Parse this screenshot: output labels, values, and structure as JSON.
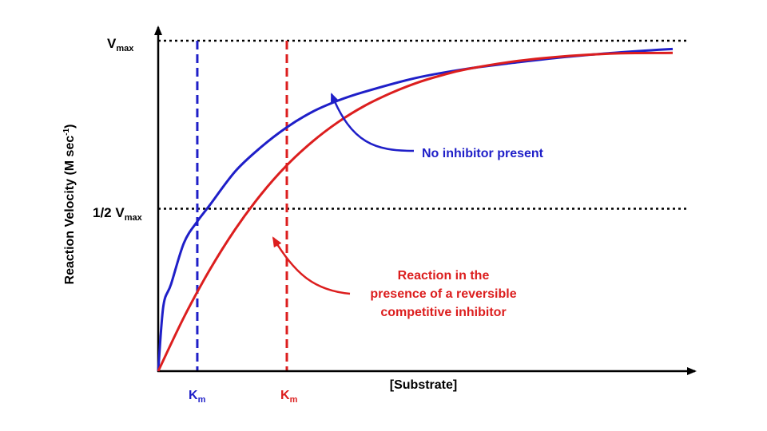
{
  "chart_data": {
    "type": "line",
    "title": "",
    "xlabel": "[Substrate]",
    "ylabel": "Reaction Velocity (M sec-1)",
    "ylabel_parts": {
      "main": "Reaction Velocity (M sec",
      "sup": "-1",
      "close": ")"
    },
    "xlim": [
      0,
      1
    ],
    "ylim": [
      0,
      1
    ],
    "grid": false,
    "legend": "annotations",
    "y_refs": [
      {
        "name": "vmax",
        "prefix": "V",
        "sub": "max",
        "value": 1.0
      },
      {
        "name": "half-vmax",
        "prefix": "1/2 V",
        "sub": "max",
        "value": 0.5
      }
    ],
    "series": [
      {
        "key": "no-inhibitor",
        "color": "#1f1fc8",
        "x": [
          0,
          0.01,
          0.025,
          0.05,
          0.075,
          0.1,
          0.15,
          0.2,
          0.25,
          0.3,
          0.35,
          0.4,
          0.5,
          0.6,
          0.7,
          0.8,
          0.9,
          1.0
        ],
        "y": [
          0,
          0.196,
          0.263,
          0.388,
          0.451,
          0.502,
          0.605,
          0.678,
          0.738,
          0.785,
          0.819,
          0.845,
          0.887,
          0.915,
          0.935,
          0.952,
          0.965,
          0.975
        ]
      },
      {
        "key": "competitive-inhibitor",
        "color": "#dc1e1e",
        "x": [
          0,
          0.05,
          0.1,
          0.15,
          0.2,
          0.25,
          0.3,
          0.35,
          0.4,
          0.45,
          0.5,
          0.55,
          0.6,
          0.7,
          0.8,
          0.9,
          1.0
        ],
        "y": [
          0,
          0.163,
          0.306,
          0.43,
          0.535,
          0.623,
          0.695,
          0.754,
          0.802,
          0.84,
          0.871,
          0.895,
          0.914,
          0.939,
          0.954,
          0.962,
          0.963
        ]
      }
    ],
    "km_markers": [
      {
        "key": "km-no-inhibitor",
        "x": 0.076,
        "label": "K",
        "sub": "m",
        "color": "#1f1fc8"
      },
      {
        "key": "km-competitive-inhibitor",
        "x": 0.25,
        "label": "K",
        "sub": "m",
        "color": "#dc1e1e"
      }
    ],
    "annotations": [
      {
        "key": "no-inhibitor-label",
        "color": "#1f1fc8",
        "lines": [
          "No inhibitor present"
        ],
        "arrow_to": {
          "x": 0.33,
          "y": 0.841
        }
      },
      {
        "key": "inhibitor-label",
        "color": "#dc1e1e",
        "lines": [
          "Reaction in the",
          "presence of a reversible",
          "competitive inhibitor"
        ],
        "arrow_to": {
          "x": 0.22,
          "y": 0.395
        }
      }
    ]
  }
}
